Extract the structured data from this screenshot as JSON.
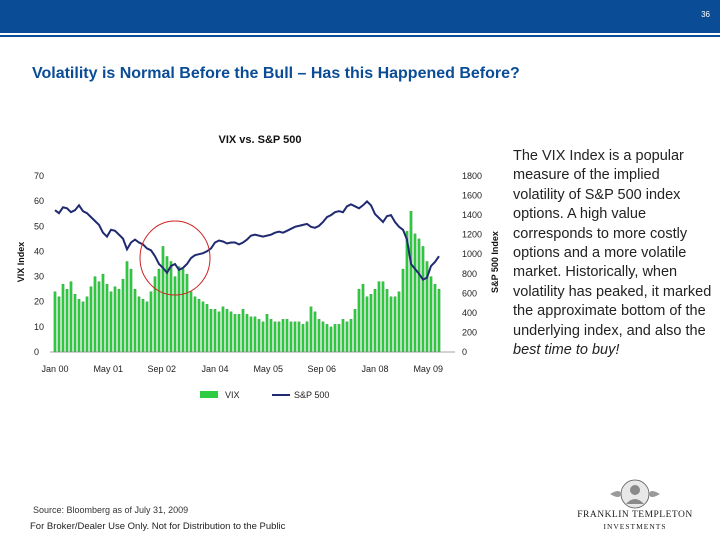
{
  "header": {
    "page_number": "36"
  },
  "slide_title": "Volatility is Normal Before the Bull – Has this Happened Before?",
  "description": {
    "main": "The VIX Index is a popular measure of the implied volatility of S&P 500 index options. A high value corresponds to more costly options and a more volatile market. Historically, when volatility has peaked, it marked the approximate bottom of the underlying index, and also the ",
    "emphasis": "best time to buy!"
  },
  "footer": {
    "source": "Source: Bloomberg as of July 31, 2009",
    "disclaimer": "For Broker/Dealer Use Only. Not for Distribution to the Public"
  },
  "logo": {
    "line1": "FRANKLIN TEMPLETON",
    "line2": "INVESTMENTS"
  },
  "colors": {
    "brand_blue": "#0b4c97",
    "vix_green": "#2ecc40",
    "sp_line": "#1f2a70",
    "highlight_circle": "#cc2222"
  },
  "chart_data": {
    "type": "bar+line",
    "title": "VIX vs. S&P 500",
    "left_axis": {
      "label": "VIX Index",
      "ylim": [
        0,
        70
      ],
      "ticks": [
        "0",
        "10",
        "20",
        "30",
        "40",
        "50",
        "60",
        "70"
      ]
    },
    "right_axis": {
      "label": "S&P 500 Index",
      "ylim": [
        0,
        1800
      ],
      "ticks": [
        "0",
        "200",
        "400",
        "600",
        "800",
        "1000",
        "1200",
        "1400",
        "1600",
        "1800"
      ]
    },
    "x_range": [
      2000.0,
      2010.0
    ],
    "x_tick_labels": [
      {
        "label": "Jan 00",
        "t": 2000.0
      },
      {
        "label": "May 01",
        "t": 2001.33
      },
      {
        "label": "Sep 02",
        "t": 2002.67
      },
      {
        "label": "Jan 04",
        "t": 2004.0
      },
      {
        "label": "May 05",
        "t": 2005.33
      },
      {
        "label": "Sep 06",
        "t": 2006.67
      },
      {
        "label": "Jan 08",
        "t": 2008.0
      },
      {
        "label": "May 09",
        "t": 2009.33
      }
    ],
    "legend": [
      "VIX",
      "S&P 500"
    ],
    "annotation": "circle marking VIX peak near S&P 500 bottom, Jul–Oct 2002",
    "series": [
      {
        "name": "VIX",
        "kind": "bar",
        "axis": "left",
        "x": [
          2000.0,
          2000.1,
          2000.2,
          2000.3,
          2000.4,
          2000.5,
          2000.6,
          2000.7,
          2000.8,
          2000.9,
          2001.0,
          2001.1,
          2001.2,
          2001.3,
          2001.4,
          2001.5,
          2001.6,
          2001.7,
          2001.8,
          2001.9,
          2002.0,
          2002.1,
          2002.2,
          2002.3,
          2002.4,
          2002.5,
          2002.6,
          2002.7,
          2002.8,
          2002.9,
          2003.0,
          2003.1,
          2003.2,
          2003.3,
          2003.4,
          2003.5,
          2003.6,
          2003.7,
          2003.8,
          2003.9,
          2004.0,
          2004.1,
          2004.2,
          2004.3,
          2004.4,
          2004.5,
          2004.6,
          2004.7,
          2004.8,
          2004.9,
          2005.0,
          2005.1,
          2005.2,
          2005.3,
          2005.4,
          2005.5,
          2005.6,
          2005.7,
          2005.8,
          2005.9,
          2006.0,
          2006.1,
          2006.2,
          2006.3,
          2006.4,
          2006.5,
          2006.6,
          2006.7,
          2006.8,
          2006.9,
          2007.0,
          2007.1,
          2007.2,
          2007.3,
          2007.4,
          2007.5,
          2007.6,
          2007.7,
          2007.8,
          2007.9,
          2008.0,
          2008.1,
          2008.2,
          2008.3,
          2008.4,
          2008.5,
          2008.6,
          2008.7,
          2008.8,
          2008.9,
          2009.0,
          2009.1,
          2009.2,
          2009.3,
          2009.4,
          2009.5,
          2009.6
        ],
        "values": [
          24,
          22,
          27,
          25,
          28,
          23,
          21,
          20,
          22,
          26,
          30,
          28,
          31,
          27,
          24,
          26,
          25,
          29,
          36,
          33,
          25,
          22,
          21,
          20,
          24,
          30,
          33,
          42,
          38,
          36,
          30,
          34,
          33,
          31,
          24,
          22,
          21,
          20,
          19,
          17,
          17,
          16,
          18,
          17,
          16,
          15,
          15,
          17,
          15,
          14,
          14,
          13,
          12,
          15,
          13,
          12,
          12,
          13,
          13,
          12,
          12,
          12,
          11,
          12,
          18,
          16,
          13,
          12,
          11,
          10,
          11,
          11,
          13,
          12,
          13,
          17,
          25,
          27,
          22,
          23,
          25,
          28,
          28,
          25,
          22,
          22,
          24,
          33,
          48,
          56,
          47,
          45,
          42,
          36,
          30,
          27,
          25
        ]
      },
      {
        "name": "S&P 500",
        "kind": "line",
        "axis": "right",
        "x": [
          2000.0,
          2000.1,
          2000.2,
          2000.3,
          2000.4,
          2000.5,
          2000.6,
          2000.7,
          2000.8,
          2000.9,
          2001.0,
          2001.1,
          2001.2,
          2001.3,
          2001.4,
          2001.5,
          2001.6,
          2001.7,
          2001.8,
          2001.9,
          2002.0,
          2002.1,
          2002.2,
          2002.3,
          2002.4,
          2002.5,
          2002.6,
          2002.7,
          2002.8,
          2002.9,
          2003.0,
          2003.1,
          2003.2,
          2003.3,
          2003.4,
          2003.5,
          2003.6,
          2003.7,
          2003.8,
          2003.9,
          2004.0,
          2004.1,
          2004.2,
          2004.3,
          2004.4,
          2004.5,
          2004.6,
          2004.7,
          2004.8,
          2004.9,
          2005.0,
          2005.1,
          2005.2,
          2005.3,
          2005.4,
          2005.5,
          2005.6,
          2005.7,
          2005.8,
          2005.9,
          2006.0,
          2006.1,
          2006.2,
          2006.3,
          2006.4,
          2006.5,
          2006.6,
          2006.7,
          2006.8,
          2006.9,
          2007.0,
          2007.1,
          2007.2,
          2007.3,
          2007.4,
          2007.5,
          2007.6,
          2007.7,
          2007.8,
          2007.9,
          2008.0,
          2008.1,
          2008.2,
          2008.3,
          2008.4,
          2008.5,
          2008.6,
          2008.7,
          2008.8,
          2008.9,
          2009.0,
          2009.1,
          2009.2,
          2009.3,
          2009.4,
          2009.5,
          2009.6
        ],
        "values": [
          1450,
          1420,
          1480,
          1470,
          1430,
          1450,
          1500,
          1440,
          1420,
          1380,
          1340,
          1300,
          1220,
          1180,
          1250,
          1240,
          1200,
          1160,
          1050,
          1120,
          1150,
          1120,
          1100,
          1060,
          1040,
          980,
          900,
          860,
          810,
          880,
          900,
          840,
          860,
          900,
          960,
          990,
          1000,
          1010,
          1030,
          1060,
          1120,
          1140,
          1130,
          1110,
          1120,
          1120,
          1100,
          1120,
          1150,
          1190,
          1200,
          1190,
          1180,
          1190,
          1200,
          1220,
          1230,
          1220,
          1240,
          1260,
          1280,
          1290,
          1300,
          1310,
          1280,
          1270,
          1290,
          1330,
          1380,
          1400,
          1430,
          1440,
          1430,
          1490,
          1510,
          1490,
          1470,
          1500,
          1540,
          1500,
          1410,
          1370,
          1330,
          1390,
          1400,
          1330,
          1280,
          1250,
          1150,
          900,
          850,
          800,
          740,
          760,
          880,
          920,
          980
        ]
      }
    ]
  }
}
